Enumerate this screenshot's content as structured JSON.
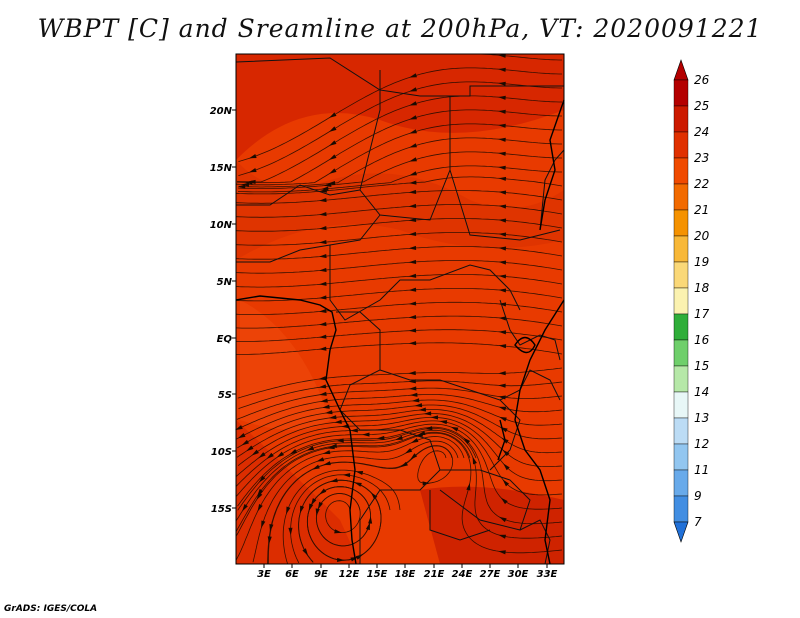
{
  "title": "WBPT [C] and Sreamline at 200hPa, VT: 2020091221",
  "credit": "GrADS: IGES/COLA",
  "lat_ticks": [
    "20N",
    "15N",
    "10N",
    "5N",
    "EQ",
    "5S",
    "10S",
    "15S"
  ],
  "lon_ticks": [
    "3E",
    "6E",
    "9E",
    "12E",
    "15E",
    "18E",
    "21E",
    "24E",
    "27E",
    "30E",
    "33E"
  ],
  "colorbar": {
    "labels": [
      "26",
      "25",
      "24",
      "23",
      "22",
      "21",
      "20",
      "19",
      "18",
      "17",
      "16",
      "15",
      "14",
      "13",
      "12",
      "11",
      "9",
      "7"
    ],
    "colors": [
      "#b40000",
      "#cc1a00",
      "#e03000",
      "#f04a00",
      "#f26a00",
      "#f59200",
      "#f8b838",
      "#fad878",
      "#fbf2b0",
      "#2fae39",
      "#6fcf6b",
      "#b6e8a8",
      "#e8f7f7",
      "#bcdcf5",
      "#92c6f0",
      "#68aaea",
      "#428ee2",
      "#2070d8"
    ]
  },
  "map_colors": {
    "base": "#e83a00",
    "warm": "#d42400",
    "cool": "#f04e10"
  }
}
